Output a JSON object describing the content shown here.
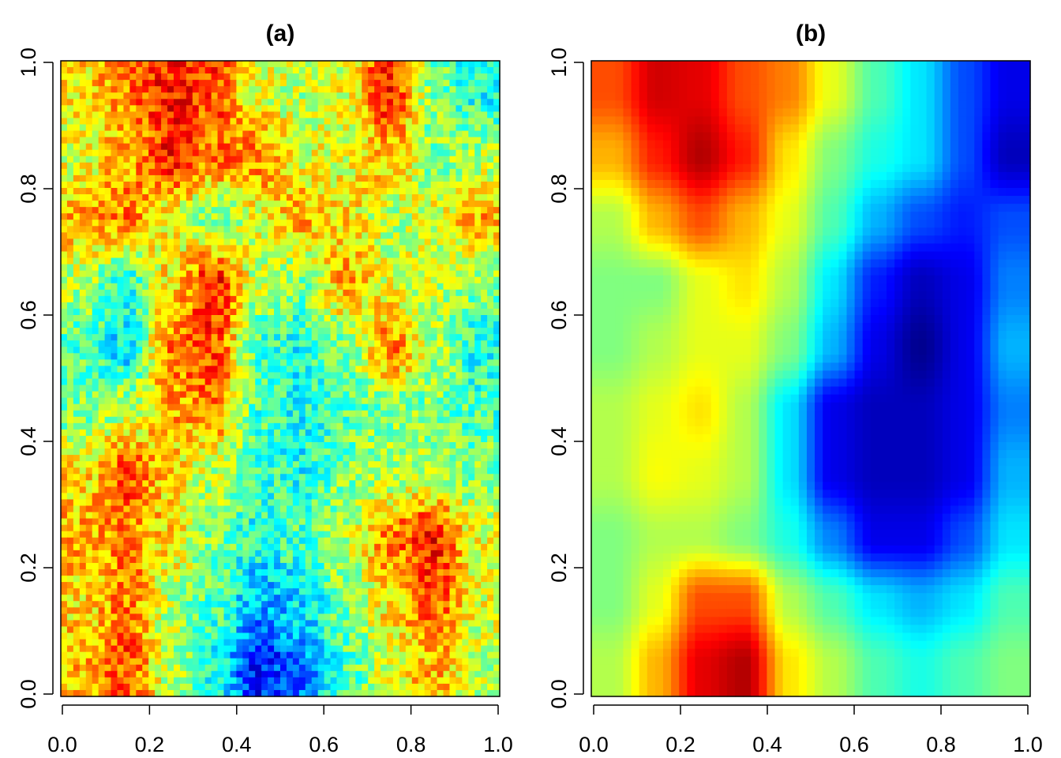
{
  "chart_data": [
    {
      "type": "heatmap",
      "title": "(a)",
      "xlabel": "",
      "ylabel": "",
      "xlim": [
        0,
        1
      ],
      "ylim": [
        0,
        1
      ],
      "x_ticks": [
        "0.0",
        "0.2",
        "0.4",
        "0.6",
        "0.8",
        "1.0"
      ],
      "y_ticks": [
        "0.0",
        "0.2",
        "0.4",
        "0.6",
        "0.8",
        "1.0"
      ],
      "colormap": "jet (blue = low, dark red = high)",
      "texture": "noisy, fine-grained",
      "grid_x_centers": [
        0.05,
        0.15,
        0.25,
        0.35,
        0.45,
        0.55,
        0.65,
        0.75,
        0.85,
        0.95
      ],
      "grid_y_centers_top_to_bottom": [
        0.95,
        0.85,
        0.75,
        0.65,
        0.55,
        0.45,
        0.35,
        0.25,
        0.15,
        0.05
      ],
      "values_relative": [
        [
          0.65,
          0.75,
          0.85,
          0.8,
          0.6,
          0.55,
          0.6,
          0.85,
          0.5,
          0.4
        ],
        [
          0.6,
          0.7,
          0.85,
          0.75,
          0.75,
          0.6,
          0.6,
          0.7,
          0.5,
          0.55
        ],
        [
          0.7,
          0.75,
          0.6,
          0.5,
          0.6,
          0.7,
          0.65,
          0.55,
          0.6,
          0.7
        ],
        [
          0.55,
          0.4,
          0.65,
          0.85,
          0.55,
          0.5,
          0.7,
          0.6,
          0.55,
          0.5
        ],
        [
          0.45,
          0.35,
          0.75,
          0.8,
          0.45,
          0.4,
          0.5,
          0.75,
          0.55,
          0.4
        ],
        [
          0.5,
          0.55,
          0.7,
          0.75,
          0.45,
          0.4,
          0.45,
          0.5,
          0.5,
          0.45
        ],
        [
          0.65,
          0.8,
          0.65,
          0.55,
          0.45,
          0.4,
          0.5,
          0.55,
          0.55,
          0.5
        ],
        [
          0.7,
          0.75,
          0.65,
          0.5,
          0.4,
          0.45,
          0.55,
          0.75,
          0.85,
          0.6
        ],
        [
          0.65,
          0.75,
          0.55,
          0.45,
          0.3,
          0.35,
          0.5,
          0.65,
          0.8,
          0.6
        ],
        [
          0.7,
          0.8,
          0.55,
          0.4,
          0.15,
          0.25,
          0.45,
          0.6,
          0.7,
          0.55
        ]
      ]
    },
    {
      "type": "heatmap",
      "title": "(b)",
      "xlabel": "",
      "ylabel": "",
      "xlim": [
        0,
        1
      ],
      "ylim": [
        0,
        1
      ],
      "x_ticks": [
        "0.0",
        "0.2",
        "0.4",
        "0.6",
        "0.8",
        "1.0"
      ],
      "y_ticks": [
        "0.0",
        "0.2",
        "0.4",
        "0.6",
        "0.8",
        "1.0"
      ],
      "colormap": "jet (blue = low, dark red = high)",
      "texture": "smooth",
      "grid_x_centers": [
        0.05,
        0.15,
        0.25,
        0.35,
        0.45,
        0.55,
        0.65,
        0.75,
        0.85,
        0.95
      ],
      "grid_y_centers_top_to_bottom": [
        0.95,
        0.85,
        0.75,
        0.65,
        0.55,
        0.45,
        0.35,
        0.25,
        0.15,
        0.05
      ],
      "values_relative": [
        [
          0.8,
          0.92,
          0.9,
          0.8,
          0.75,
          0.6,
          0.45,
          0.35,
          0.2,
          0.1
        ],
        [
          0.7,
          0.85,
          0.95,
          0.85,
          0.65,
          0.5,
          0.4,
          0.35,
          0.2,
          0.05
        ],
        [
          0.55,
          0.7,
          0.8,
          0.7,
          0.6,
          0.45,
          0.3,
          0.2,
          0.15,
          0.2
        ],
        [
          0.5,
          0.5,
          0.6,
          0.65,
          0.55,
          0.35,
          0.15,
          0.05,
          0.1,
          0.25
        ],
        [
          0.5,
          0.55,
          0.6,
          0.6,
          0.5,
          0.3,
          0.1,
          0.0,
          0.1,
          0.3
        ],
        [
          0.55,
          0.6,
          0.65,
          0.55,
          0.35,
          0.1,
          0.05,
          0.05,
          0.1,
          0.25
        ],
        [
          0.55,
          0.62,
          0.6,
          0.55,
          0.35,
          0.1,
          0.05,
          0.05,
          0.1,
          0.3
        ],
        [
          0.5,
          0.55,
          0.55,
          0.5,
          0.4,
          0.25,
          0.1,
          0.1,
          0.2,
          0.35
        ],
        [
          0.5,
          0.6,
          0.8,
          0.8,
          0.55,
          0.45,
          0.35,
          0.3,
          0.35,
          0.45
        ],
        [
          0.55,
          0.7,
          0.9,
          0.95,
          0.65,
          0.55,
          0.45,
          0.4,
          0.45,
          0.5
        ]
      ]
    }
  ]
}
